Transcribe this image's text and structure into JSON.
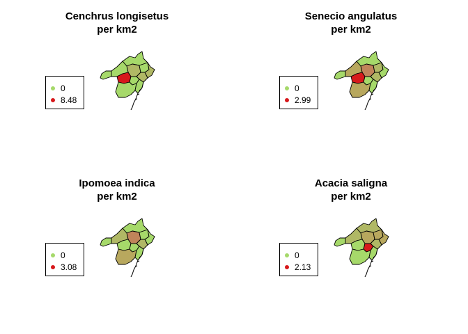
{
  "colors": {
    "low": "#a6d96a",
    "mid_green": "#b0b865",
    "olive": "#b8a85e",
    "brown": "#c0845a",
    "high": "#d7191c"
  },
  "panels": [
    {
      "title_line1": "Cenchrus longisetus",
      "title_line2": "per km2",
      "legend": [
        {
          "label": "0",
          "color": "#a6d96a"
        },
        {
          "label": "8.48",
          "color": "#d7191c"
        }
      ],
      "fills": [
        "#a6d96a",
        "#b0b865",
        "#a6d96a",
        "#b0b865",
        "#a6d96a",
        "#a6d96a",
        "#b0b865",
        "#d7191c",
        "#a6d96a",
        "#a6d96a",
        "#a6d96a"
      ]
    },
    {
      "title_line1": "Senecio angulatus",
      "title_line2": "per km2",
      "legend": [
        {
          "label": "0",
          "color": "#a6d96a"
        },
        {
          "label": "2.99",
          "color": "#d7191c"
        }
      ],
      "fills": [
        "#a6d96a",
        "#c0845a",
        "#b0b865",
        "#a6d96a",
        "#b8a85e",
        "#a6d96a",
        "#b0b865",
        "#d7191c",
        "#a6d96a",
        "#b8a85e",
        "#a6d96a"
      ]
    },
    {
      "title_line1": "Ipomoea indica",
      "title_line2": "per km2",
      "legend": [
        {
          "label": "0",
          "color": "#a6d96a"
        },
        {
          "label": "3.08",
          "color": "#d7191c"
        }
      ],
      "fills": [
        "#a6d96a",
        "#c0845a",
        "#a6d96a",
        "#a6d96a",
        "#b0b865",
        "#a6d96a",
        "#b0b865",
        "#a6d96a",
        "#a6d96a",
        "#b8a85e",
        "#a6d96a"
      ]
    },
    {
      "title_line1": "Acacia saligna",
      "title_line2": "per km2",
      "legend": [
        {
          "label": "0",
          "color": "#a6d96a"
        },
        {
          "label": "2.13",
          "color": "#d7191c"
        }
      ],
      "fills": [
        "#b0b865",
        "#b8a85e",
        "#b8a85e",
        "#b8a85e",
        "#b0b865",
        "#a6d96a",
        "#b0b865",
        "#a6d96a",
        "#d7191c",
        "#a6d96a",
        "#a6d96a"
      ]
    }
  ]
}
